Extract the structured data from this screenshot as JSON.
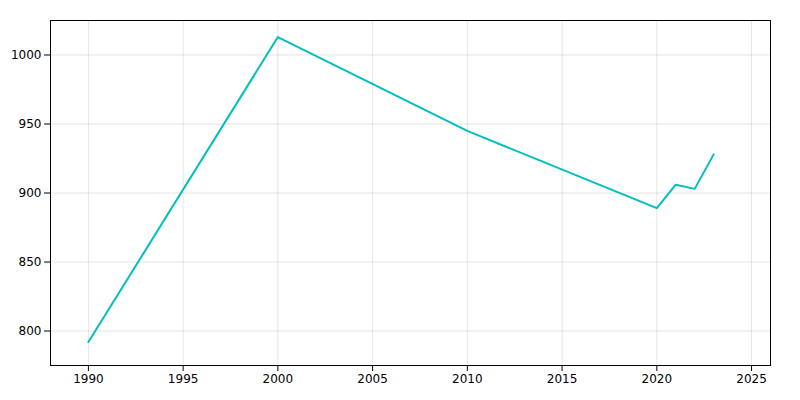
{
  "chart_data": {
    "type": "line",
    "x": [
      1990,
      2000,
      2010,
      2020,
      2021,
      2022,
      2023
    ],
    "values": [
      792,
      1013,
      945,
      889,
      906,
      903,
      928
    ],
    "color": "#00BFBF",
    "xlim": [
      1988,
      2026
    ],
    "ylim": [
      775,
      1025
    ],
    "xticks": [
      1990,
      1995,
      2000,
      2005,
      2010,
      2015,
      2020,
      2025
    ],
    "yticks": [
      800,
      850,
      900,
      950,
      1000
    ],
    "grid": true
  }
}
